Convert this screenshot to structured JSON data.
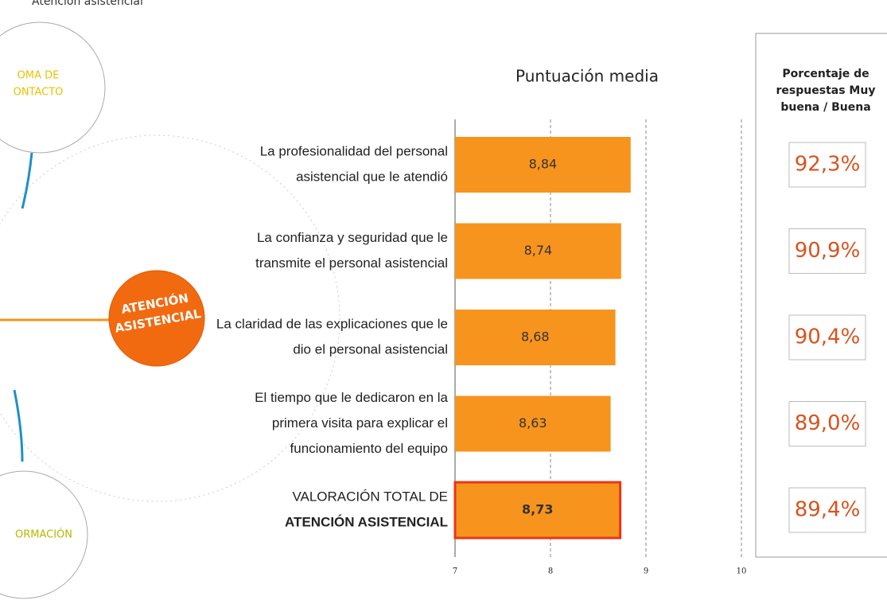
{
  "header": "Atención asistencial",
  "diagram": {
    "center": [
      "ATENCIÓN",
      "ASISTENCIAL"
    ],
    "top_node": [
      "OMA DE",
      "ONTACTO"
    ],
    "bottom_node": "ORMACIÓN"
  },
  "chart_data": {
    "type": "bar",
    "orientation": "horizontal",
    "title": "Puntuación media",
    "categories": [
      [
        "La profesionalidad del personal",
        "asistencial que le atendió"
      ],
      [
        "La confianza y seguridad que le",
        "transmite el personal asistencial"
      ],
      [
        "La claridad de las explicaciones que le",
        "dio el personal asistencial"
      ],
      [
        "El tiempo que le dedicaron en la",
        "primera visita para explicar el",
        "funcionamiento del equipo"
      ],
      [
        "VALORACIÓN TOTAL DE",
        "ATENCIÓN ASISTENCIAL"
      ]
    ],
    "values": [
      8.84,
      8.74,
      8.68,
      8.63,
      8.73
    ],
    "value_labels": [
      "8,84",
      "8,74",
      "8,68",
      "8,63",
      "8,73"
    ],
    "color": "#f7941d",
    "xlim": [
      7,
      10
    ],
    "xticks": [
      7,
      8,
      9,
      10
    ],
    "grid": true
  },
  "side_table": {
    "title": [
      "Porcentaje de",
      "respuestas Muy",
      "buena / Buena"
    ],
    "values": [
      92.3,
      90.9,
      90.4,
      89.0,
      89.4
    ],
    "value_labels": [
      "92,3%",
      "90,9%",
      "90,4%",
      "89,0%",
      "89,4%"
    ],
    "color": "#d9531e"
  }
}
